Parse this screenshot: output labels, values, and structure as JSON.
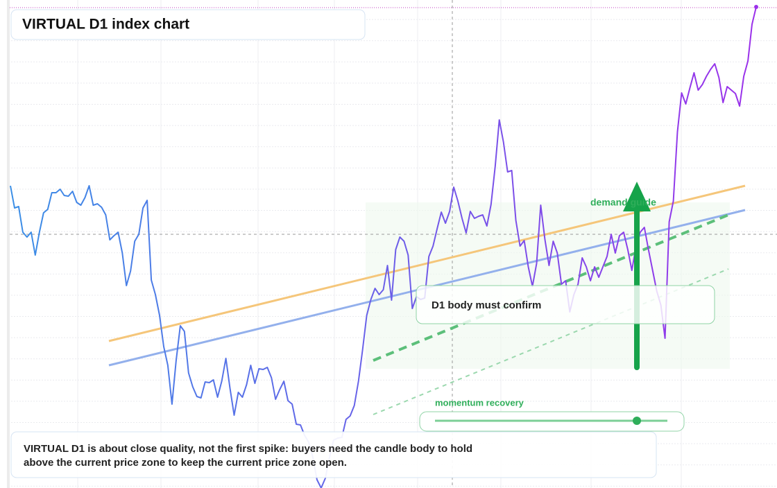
{
  "chart_data": {
    "type": "line",
    "title": "VIRTUAL D1 index chart",
    "values": [
      436,
      404,
      406,
      369,
      362,
      369,
      336,
      369,
      397,
      402,
      426,
      426,
      431,
      422,
      421,
      428,
      412,
      408,
      419,
      436,
      408,
      410,
      405,
      394,
      358,
      364,
      369,
      339,
      292,
      313,
      356,
      366,
      404,
      415,
      300,
      279,
      249,
      204,
      177,
      121,
      184,
      234,
      226,
      166,
      146,
      132,
      130,
      153,
      152,
      156,
      131,
      154,
      187,
      144,
      105,
      138,
      131,
      149,
      177,
      151,
      172,
      171,
      174,
      159,
      128,
      142,
      154,
      126,
      121,
      92,
      91,
      76,
      66,
      44,
      12,
      0,
      14,
      44,
      69,
      72,
      73,
      99,
      104,
      119,
      154,
      199,
      249,
      272,
      288,
      279,
      286,
      321,
      271,
      344,
      362,
      356,
      336,
      259,
      276,
      272,
      274,
      334,
      349,
      374,
      398,
      382,
      399,
      434,
      414,
      389,
      368,
      399,
      389,
      392,
      394,
      378,
      409,
      464,
      531,
      499,
      456,
      458,
      386,
      349,
      357,
      319,
      291,
      324,
      408,
      359,
      321,
      356,
      339,
      294,
      299,
      254,
      279,
      294,
      332,
      319,
      299,
      319,
      304,
      319,
      334,
      366,
      339,
      364,
      369,
      344,
      314,
      349,
      369,
      376,
      344,
      314,
      284,
      264,
      216,
      384,
      414,
      514,
      570,
      554,
      577,
      599,
      574,
      582,
      594,
      604,
      612,
      592,
      556,
      579,
      574,
      569,
      551,
      594,
      616,
      669,
      694
    ],
    "ylim": [
      0,
      704
    ],
    "color": "#3a8ee6",
    "color_end": "#9b30ea",
    "grid": true,
    "annotations": {
      "zone_label": "demand guide",
      "confirm": "D1 body must confirm",
      "momentum": "momentum recovery",
      "note": [
        "VIRTUAL D1 is about close quality, not the first spike: buyers need the candle body to hold",
        "above the current price zone to keep the current price zone open."
      ]
    }
  }
}
